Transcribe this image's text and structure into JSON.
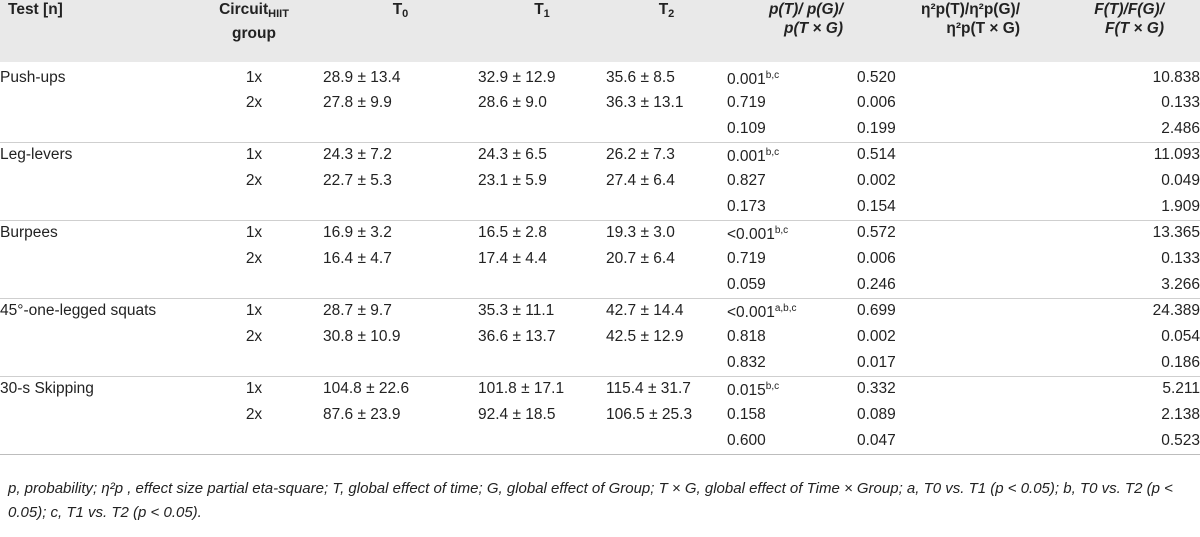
{
  "table": {
    "headers": {
      "test": "Test [n]",
      "circuit_main": "Circuit",
      "circuit_sub": "HIIT",
      "circuit_line2": "group",
      "t0": "T",
      "t0_sub": "0",
      "t1": "T",
      "t1_sub": "1",
      "t2": "T",
      "t2_sub": "2",
      "p_line1": "p(T)/ p(G)/",
      "p_line2": "p(T × G)",
      "eta_line1": "η²p(T)/η²p(G)/",
      "eta_line2": "η²p(T × G)",
      "f_line1": "F(T)/F(G)/",
      "f_line2": "F(T × G)"
    },
    "groups": [
      {
        "test": "Push-ups",
        "rows": [
          {
            "group": "1x",
            "t0": "28.9 ± 13.4",
            "t1": "32.9 ± 12.9",
            "t2": "35.6 ± 8.5",
            "p": "0.001",
            "p_sup": "b,c",
            "eta": "0.520",
            "f": "10.838"
          },
          {
            "group": "2x",
            "t0": "27.8 ± 9.9",
            "t1": "28.6 ± 9.0",
            "t2": "36.3 ± 13.1",
            "p": "0.719",
            "p_sup": "",
            "eta": "0.006",
            "f": "0.133"
          },
          {
            "group": "",
            "t0": "",
            "t1": "",
            "t2": "",
            "p": "0.109",
            "p_sup": "",
            "eta": "0.199",
            "f": "2.486"
          }
        ]
      },
      {
        "test": "Leg-levers",
        "rows": [
          {
            "group": "1x",
            "t0": "24.3 ± 7.2",
            "t1": "24.3 ± 6.5",
            "t2": "26.2 ± 7.3",
            "p": "0.001",
            "p_sup": "b,c",
            "eta": "0.514",
            "f": "11.093"
          },
          {
            "group": "2x",
            "t0": "22.7 ± 5.3",
            "t1": "23.1 ± 5.9",
            "t2": "27.4 ± 6.4",
            "p": "0.827",
            "p_sup": "",
            "eta": "0.002",
            "f": "0.049"
          },
          {
            "group": "",
            "t0": "",
            "t1": "",
            "t2": "",
            "p": "0.173",
            "p_sup": "",
            "eta": "0.154",
            "f": "1.909"
          }
        ]
      },
      {
        "test": "Burpees",
        "rows": [
          {
            "group": "1x",
            "t0": "16.9 ± 3.2",
            "t1": "16.5 ± 2.8",
            "t2": "19.3 ± 3.0",
            "p": "<0.001",
            "p_sup": "b,c",
            "eta": "0.572",
            "f": "13.365"
          },
          {
            "group": "2x",
            "t0": "16.4 ± 4.7",
            "t1": "17.4 ± 4.4",
            "t2": "20.7 ± 6.4",
            "p": "0.719",
            "p_sup": "",
            "eta": "0.006",
            "f": "0.133"
          },
          {
            "group": "",
            "t0": "",
            "t1": "",
            "t2": "",
            "p": "0.059",
            "p_sup": "",
            "eta": "0.246",
            "f": "3.266"
          }
        ]
      },
      {
        "test": "45°-one-legged squats",
        "rows": [
          {
            "group": "1x",
            "t0": "28.7 ± 9.7",
            "t1": "35.3 ± 11.1",
            "t2": "42.7 ± 14.4",
            "p": "<0.001",
            "p_sup": "a,b,c",
            "eta": "0.699",
            "f": "24.389"
          },
          {
            "group": "2x",
            "t0": "30.8 ± 10.9",
            "t1": "36.6 ± 13.7",
            "t2": "42.5 ± 12.9",
            "p": "0.818",
            "p_sup": "",
            "eta": "0.002",
            "f": "0.054"
          },
          {
            "group": "",
            "t0": "",
            "t1": "",
            "t2": "",
            "p": "0.832",
            "p_sup": "",
            "eta": "0.017",
            "f": "0.186"
          }
        ]
      },
      {
        "test": "30-s Skipping",
        "rows": [
          {
            "group": "1x",
            "t0": "104.8 ± 22.6",
            "t1": "101.8 ± 17.1",
            "t2": "115.4 ± 31.7",
            "p": "0.015",
            "p_sup": "b,c",
            "eta": "0.332",
            "f": "5.211"
          },
          {
            "group": "2x",
            "t0": "87.6 ± 23.9",
            "t1": "92.4 ± 18.5",
            "t2": "106.5 ± 25.3",
            "p": "0.158",
            "p_sup": "",
            "eta": "0.089",
            "f": "2.138"
          },
          {
            "group": "",
            "t0": "",
            "t1": "",
            "t2": "",
            "p": "0.600",
            "p_sup": "",
            "eta": "0.047",
            "f": "0.523"
          }
        ]
      }
    ]
  },
  "footnote": "p, probability; η²p , effect size partial eta-square; T, global effect of time; G, global effect of Group; T × G, global effect of Time × Group; a, T0 vs. T1 (p < 0.05); b, T0 vs. T2 (p < 0.05); c, T1 vs. T2 (p < 0.05)."
}
